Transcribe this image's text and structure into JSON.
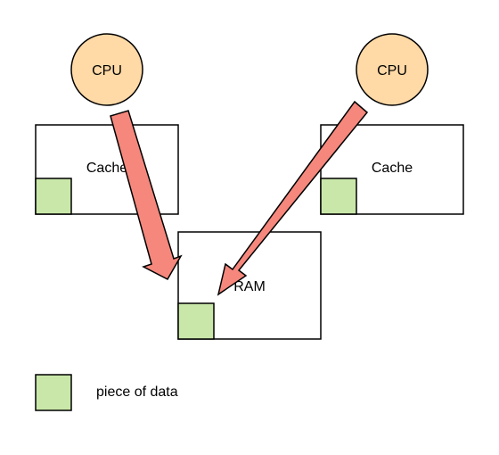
{
  "cpus": [
    {
      "label": "CPU"
    },
    {
      "label": "CPU"
    }
  ],
  "caches": [
    {
      "label": "Cache"
    },
    {
      "label": "Cache"
    }
  ],
  "ram": {
    "label": "RAM"
  },
  "legend": {
    "label": "piece of data"
  },
  "colors": {
    "cpu_fill": "#ffd9a6",
    "cpu_stroke": "#c49a5e",
    "data_fill": "#c9e7a9",
    "arrow_fill": "#f5877c",
    "outline": "#000000",
    "background": "#ffffff"
  }
}
